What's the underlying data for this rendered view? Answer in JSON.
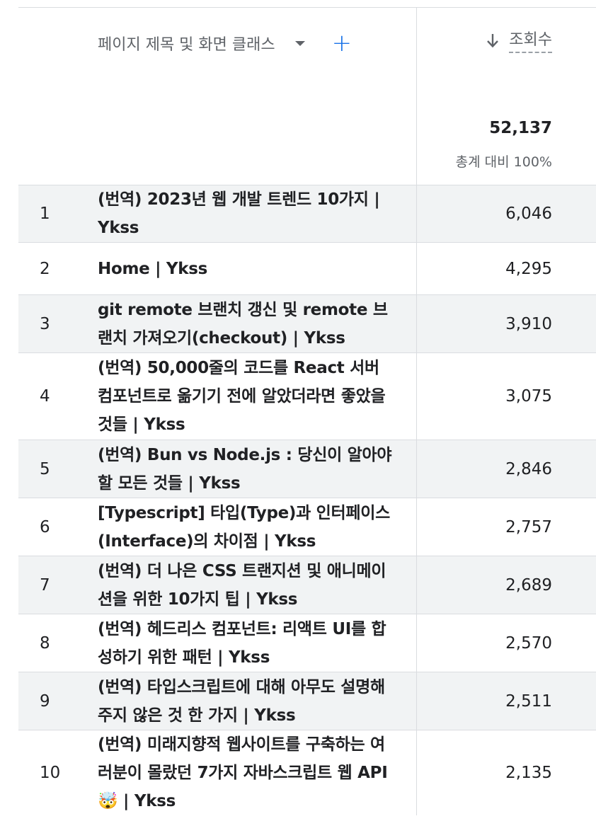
{
  "header": {
    "dimension_label": "페이지 제목 및 화면 클래스",
    "metric_label": "조회수",
    "sort_icon": "arrow-down-icon",
    "add_icon": "plus-icon",
    "dropdown_icon": "caret-down-icon"
  },
  "totals": {
    "value": "52,137",
    "sub": "총계 대비 100%"
  },
  "rows": [
    {
      "rank": "1",
      "title": "(번역) 2023년 웹 개발 트렌드 10가지 | Ykss",
      "value": "6,046"
    },
    {
      "rank": "2",
      "title": "Home | Ykss",
      "value": "4,295"
    },
    {
      "rank": "3",
      "title": "git remote 브랜치 갱신 및 remote 브랜치 가져오기(checkout) | Ykss",
      "value": "3,910"
    },
    {
      "rank": "4",
      "title": "(번역) 50,000줄의 코드를 React 서버 컴포넌트로 옮기기 전에 알았더라면 좋았을 것들 | Ykss",
      "value": "3,075"
    },
    {
      "rank": "5",
      "title": "(번역) Bun vs Node.js : 당신이 알아야 할 모든 것들 | Ykss",
      "value": "2,846"
    },
    {
      "rank": "6",
      "title": "[Typescript] 타입(Type)과 인터페이스(Interface)의 차이점 | Ykss",
      "value": "2,757"
    },
    {
      "rank": "7",
      "title": "(번역) 더 나은 CSS 트랜지션 및 애니메이션을 위한 10가지 팁 | Ykss",
      "value": "2,689"
    },
    {
      "rank": "8",
      "title": "(번역) 헤드리스 컴포넌트: 리액트 UI를 합성하기 위한 패턴 | Ykss",
      "value": "2,570"
    },
    {
      "rank": "9",
      "title": "(번역) 타입스크립트에 대해 아무도 설명해주지 않은 것 한 가지 | Ykss",
      "value": "2,511"
    },
    {
      "rank": "10",
      "title": "(번역) 미래지향적 웹사이트를 구축하는 여러분이 몰랐던 7가지 자바스크립트 웹 API 🤯 | Ykss",
      "value": "2,135"
    }
  ]
}
